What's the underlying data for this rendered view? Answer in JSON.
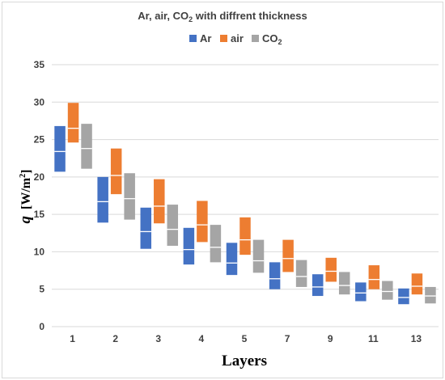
{
  "chart_data": {
    "type": "bar",
    "subtype": "floating-range",
    "title_parts": [
      "Ar, air, CO",
      "2",
      " with diffrent thickness"
    ],
    "xlabel": "Layers",
    "ylabel_parts": [
      "q",
      "  [W/m",
      "2",
      "]"
    ],
    "categories": [
      "1",
      "2",
      "3",
      "4",
      "5",
      "7",
      "9",
      "11",
      "13"
    ],
    "ylim": [
      0,
      35
    ],
    "yticks": [
      0,
      5,
      10,
      15,
      20,
      25,
      30,
      35
    ],
    "grid": "horizontal",
    "legend_position": "top",
    "series": [
      {
        "name": "Ar",
        "name_sub": "",
        "color": "#4472C4",
        "low": [
          20.7,
          13.9,
          10.4,
          8.3,
          6.9,
          5.0,
          4.1,
          3.4,
          3.0
        ],
        "high": [
          26.8,
          20.0,
          15.9,
          13.2,
          11.2,
          8.6,
          7.0,
          5.9,
          5.1
        ],
        "mid": [
          23.4,
          16.7,
          12.7,
          10.3,
          8.5,
          6.4,
          5.3,
          4.5,
          3.9
        ]
      },
      {
        "name": "air",
        "name_sub": "",
        "color": "#ED7D31",
        "low": [
          24.6,
          17.7,
          13.8,
          11.3,
          9.6,
          7.3,
          6.0,
          5.0,
          4.3
        ],
        "high": [
          29.9,
          23.8,
          19.7,
          16.8,
          14.6,
          11.6,
          9.2,
          8.2,
          7.1
        ],
        "mid": [
          26.5,
          20.2,
          16.1,
          13.6,
          11.6,
          9.1,
          7.4,
          6.3,
          5.4
        ]
      },
      {
        "name": "CO",
        "name_sub": "2",
        "color": "#A5A5A5",
        "low": [
          21.1,
          14.3,
          10.8,
          8.6,
          7.2,
          5.3,
          4.3,
          3.6,
          3.1
        ],
        "high": [
          27.1,
          20.5,
          16.3,
          13.6,
          11.6,
          8.9,
          7.3,
          6.1,
          5.3
        ],
        "mid": [
          23.8,
          17.1,
          13.0,
          10.6,
          8.8,
          6.7,
          5.5,
          4.7,
          4.1
        ]
      }
    ]
  }
}
